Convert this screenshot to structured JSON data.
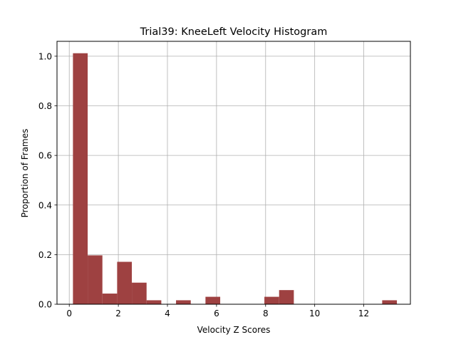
{
  "chart_data": {
    "type": "bar",
    "title": "Trial39: KneeLeft Velocity Histogram",
    "xlabel": "Velocity Z Scores",
    "ylabel": "Proportion of Frames",
    "xlim": [
      -0.5,
      13.9
    ],
    "ylim": [
      0,
      1.06
    ],
    "xticks": [
      0,
      2,
      4,
      6,
      8,
      10,
      12
    ],
    "yticks": [
      0.0,
      0.2,
      0.4,
      0.6,
      0.8,
      1.0
    ],
    "xtick_labels": [
      "0",
      "2",
      "4",
      "6",
      "8",
      "10",
      "12"
    ],
    "ytick_labels": [
      "0.0",
      "0.2",
      "0.4",
      "0.6",
      "0.8",
      "1.0"
    ],
    "grid": true,
    "bar_color": "#9e4141",
    "bins": [
      {
        "x0": 0.15,
        "x1": 0.75,
        "value": 1.012
      },
      {
        "x0": 0.75,
        "x1": 1.35,
        "value": 0.197
      },
      {
        "x0": 1.35,
        "x1": 1.95,
        "value": 0.043
      },
      {
        "x0": 1.95,
        "x1": 2.55,
        "value": 0.171
      },
      {
        "x0": 2.55,
        "x1": 3.15,
        "value": 0.087
      },
      {
        "x0": 3.15,
        "x1": 3.75,
        "value": 0.016
      },
      {
        "x0": 3.75,
        "x1": 4.35,
        "value": 0.0
      },
      {
        "x0": 4.35,
        "x1": 4.95,
        "value": 0.016
      },
      {
        "x0": 4.95,
        "x1": 5.55,
        "value": 0.0
      },
      {
        "x0": 5.55,
        "x1": 6.15,
        "value": 0.03
      },
      {
        "x0": 6.15,
        "x1": 6.75,
        "value": 0.0
      },
      {
        "x0": 6.75,
        "x1": 7.35,
        "value": 0.0
      },
      {
        "x0": 7.35,
        "x1": 7.95,
        "value": 0.0
      },
      {
        "x0": 7.95,
        "x1": 8.55,
        "value": 0.03
      },
      {
        "x0": 8.55,
        "x1": 9.15,
        "value": 0.057
      },
      {
        "x0": 9.15,
        "x1": 9.75,
        "value": 0.0
      },
      {
        "x0": 9.75,
        "x1": 10.35,
        "value": 0.0
      },
      {
        "x0": 10.35,
        "x1": 10.95,
        "value": 0.0
      },
      {
        "x0": 10.95,
        "x1": 11.55,
        "value": 0.0
      },
      {
        "x0": 11.55,
        "x1": 12.15,
        "value": 0.0
      },
      {
        "x0": 12.15,
        "x1": 12.75,
        "value": 0.0
      },
      {
        "x0": 12.75,
        "x1": 13.35,
        "value": 0.016
      }
    ]
  }
}
